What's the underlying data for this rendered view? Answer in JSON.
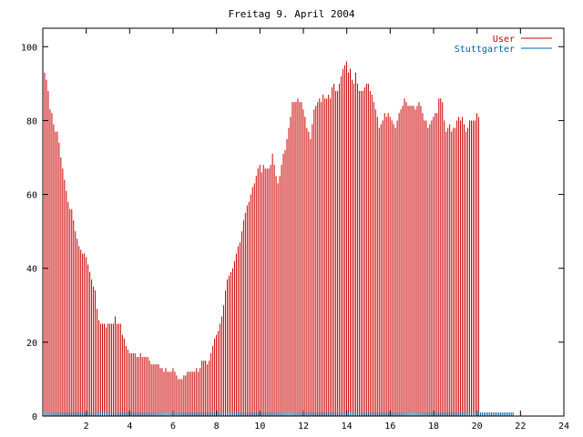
{
  "chart_data": {
    "type": "bar",
    "title": "Freitag 9. April 2004",
    "xlim": [
      0,
      24
    ],
    "ylim": [
      0,
      105
    ],
    "xticks": [
      2,
      4,
      6,
      8,
      10,
      12,
      14,
      16,
      18,
      20,
      22,
      24
    ],
    "yticks": [
      0,
      20,
      40,
      60,
      80,
      100
    ],
    "grid": false,
    "legend_position": "top-right",
    "colors": {
      "user": "#cc0000",
      "stuttgarter": "#0060a0",
      "axis": "#000000"
    },
    "series": [
      {
        "name": "User",
        "x_start": 0,
        "x_step": 0.0833,
        "values": [
          100,
          93,
          91,
          88,
          83,
          82,
          79,
          77,
          77,
          74,
          70,
          67,
          64,
          61,
          58,
          56,
          56,
          53,
          50,
          48,
          46,
          45,
          44,
          44,
          43,
          41,
          39,
          37,
          35,
          34,
          29,
          26,
          25,
          25,
          25,
          24,
          25,
          25,
          25,
          25,
          27,
          25,
          25,
          25,
          22,
          21,
          19,
          18,
          17,
          17,
          17,
          17,
          16,
          16,
          17,
          16,
          16,
          16,
          16,
          15,
          14,
          14,
          14,
          14,
          14,
          13,
          13,
          12,
          13,
          12,
          12,
          12,
          13,
          12,
          11,
          10,
          10,
          10,
          11,
          11,
          12,
          12,
          12,
          12,
          12,
          13,
          12,
          13,
          15,
          15,
          15,
          14,
          15,
          17,
          19,
          21,
          22,
          23,
          25,
          27,
          30,
          34,
          37,
          38,
          39,
          40,
          42,
          44,
          46,
          47,
          50,
          53,
          55,
          57,
          58,
          60,
          62,
          63,
          65,
          67,
          68,
          66,
          68,
          67,
          67,
          67,
          68,
          71,
          68,
          65,
          63,
          65,
          68,
          71,
          72,
          75,
          78,
          81,
          85,
          85,
          85,
          86,
          85,
          85,
          83,
          81,
          78,
          77,
          75,
          79,
          83,
          84,
          85,
          86,
          85,
          87,
          86,
          86,
          87,
          86,
          89,
          90,
          88,
          88,
          90,
          92,
          94,
          95,
          96,
          93,
          94,
          91,
          90,
          93,
          90,
          88,
          88,
          88,
          89,
          90,
          90,
          88,
          87,
          85,
          83,
          81,
          78,
          79,
          80,
          82,
          81,
          82,
          81,
          80,
          79,
          78,
          80,
          82,
          83,
          84,
          86,
          85,
          84,
          84,
          84,
          84,
          83,
          84,
          85,
          84,
          82,
          80,
          80,
          78,
          79,
          80,
          81,
          82,
          82,
          86,
          86,
          85,
          80,
          77,
          78,
          79,
          77,
          78,
          78,
          80,
          81,
          80,
          81,
          79,
          77,
          78,
          80,
          80,
          80,
          80,
          82,
          81
        ]
      },
      {
        "name": "Stuttgarter",
        "x_start": 0,
        "x_step": 0.0833,
        "values": [
          1,
          1,
          1,
          1,
          1,
          1,
          1,
          1,
          1,
          1,
          1,
          1,
          1,
          1,
          1,
          1,
          1,
          1,
          1,
          1,
          1,
          1,
          1,
          1,
          1,
          1,
          1,
          1,
          1,
          1,
          1,
          1,
          1,
          1,
          1,
          1,
          1,
          1,
          1,
          1,
          1,
          1,
          1,
          1,
          1,
          1,
          1,
          1,
          1,
          1,
          1,
          1,
          1,
          1,
          1,
          1,
          1,
          1,
          1,
          1,
          1,
          1,
          1,
          1,
          1,
          1,
          1,
          1,
          1,
          1,
          1,
          1,
          1,
          1,
          1,
          1,
          1,
          1,
          1,
          1,
          1,
          1,
          1,
          1,
          1,
          1,
          1,
          1,
          1,
          1,
          1,
          1,
          1,
          1,
          1,
          1,
          1,
          1,
          1,
          1,
          1,
          1,
          1,
          1,
          1,
          1,
          1,
          1,
          1,
          1,
          1,
          1,
          1,
          1,
          1,
          1,
          1,
          1,
          1,
          1,
          1,
          1,
          1,
          1,
          1,
          1,
          1,
          1,
          1,
          1,
          1,
          1,
          1,
          1,
          1,
          1,
          1,
          1,
          1,
          1,
          1,
          1,
          1,
          1,
          1,
          1,
          1,
          1,
          1,
          1,
          1,
          1,
          1,
          1,
          1,
          1,
          1,
          1,
          1,
          1,
          1,
          1,
          1,
          1,
          1,
          1,
          1,
          1,
          1,
          1,
          1,
          1,
          1,
          1,
          1,
          1,
          1,
          1,
          1,
          1,
          1,
          1,
          1,
          1,
          1,
          1,
          1,
          1,
          1,
          1,
          1,
          1,
          1,
          1,
          1,
          1,
          1,
          1,
          1,
          1,
          1,
          1,
          1,
          1,
          1,
          1,
          1,
          1,
          1,
          1,
          1,
          1,
          1,
          1,
          1,
          1,
          1,
          1,
          1,
          1,
          1,
          1,
          1,
          1,
          1,
          1,
          1,
          1,
          1,
          1,
          1,
          1,
          1,
          1,
          1,
          1,
          1,
          1,
          1,
          1,
          1,
          1,
          1,
          1,
          1,
          1,
          1,
          1,
          1,
          1,
          1,
          1,
          1,
          1,
          1,
          1,
          1,
          1,
          1,
          1,
          1
        ]
      }
    ]
  }
}
